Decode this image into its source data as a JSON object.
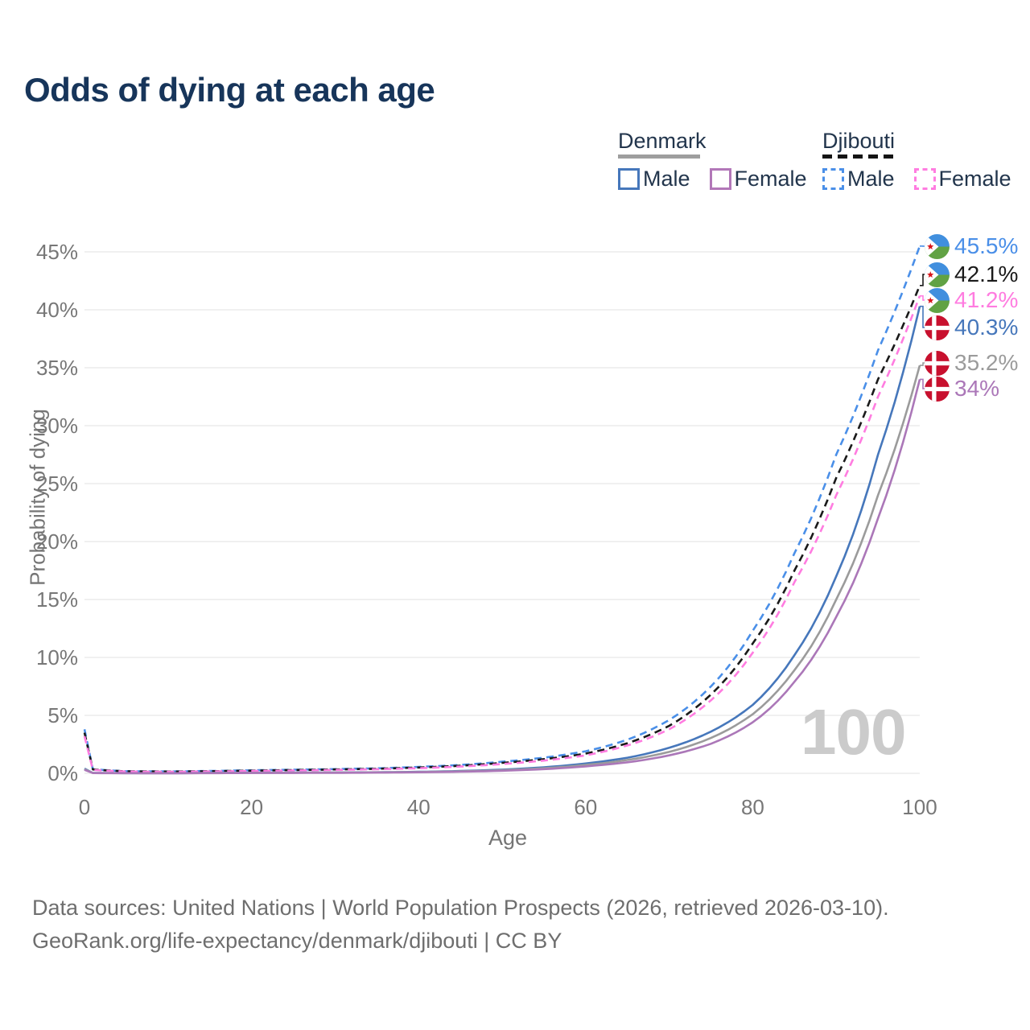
{
  "title": "Odds of dying at each age",
  "watermark": "100",
  "legend": {
    "groups": [
      {
        "name": "Denmark",
        "style": "solid",
        "underline_color": "#9e9e9e",
        "items": [
          {
            "label": "Male",
            "color": "#4677bb"
          },
          {
            "label": "Female",
            "color": "#b277b8"
          }
        ]
      },
      {
        "name": "Djibouti",
        "style": "dashed",
        "underline_color": "#141414",
        "items": [
          {
            "label": "Male",
            "color": "#4a8fe8"
          },
          {
            "label": "Female",
            "color": "#ff7ce0"
          }
        ]
      }
    ]
  },
  "chart_data": {
    "type": "line",
    "title": "Odds of dying at each age",
    "xlabel": "Age",
    "ylabel": "Probability of dying",
    "xlim": [
      0,
      100
    ],
    "ylim": [
      0,
      47
    ],
    "xticks": [
      0,
      20,
      40,
      60,
      80,
      100
    ],
    "yticks": [
      0,
      5,
      10,
      15,
      20,
      25,
      30,
      35,
      40,
      45
    ],
    "grid": true,
    "legend_position": "top-right",
    "x": [
      0,
      1,
      5,
      10,
      15,
      20,
      25,
      30,
      35,
      40,
      45,
      50,
      55,
      60,
      65,
      70,
      75,
      80,
      85,
      90,
      95,
      100
    ],
    "series": [
      {
        "name": "Djibouti Male",
        "country": "Djibouti",
        "sex": "male",
        "color": "#4a8fe8",
        "dash": "dashed",
        "end_label": "45.5%",
        "values": [
          3.8,
          0.35,
          0.18,
          0.16,
          0.2,
          0.26,
          0.31,
          0.36,
          0.43,
          0.55,
          0.72,
          1.0,
          1.35,
          1.9,
          2.9,
          4.6,
          7.5,
          12.3,
          19.0,
          27.5,
          36.5,
          45.5
        ]
      },
      {
        "name": "Djibouti Both sexes",
        "country": "Djibouti",
        "sex": "both",
        "color": "#1a1a1a",
        "dash": "dashed",
        "end_label": "42.1%",
        "values": [
          3.5,
          0.33,
          0.17,
          0.15,
          0.18,
          0.23,
          0.28,
          0.33,
          0.39,
          0.5,
          0.65,
          0.9,
          1.22,
          1.7,
          2.6,
          4.1,
          6.8,
          11.2,
          17.5,
          25.5,
          34.0,
          42.1
        ]
      },
      {
        "name": "Djibouti Female",
        "country": "Djibouti",
        "sex": "female",
        "color": "#ff7ce0",
        "dash": "dashed",
        "end_label": "41.2%",
        "values": [
          3.2,
          0.3,
          0.15,
          0.13,
          0.16,
          0.2,
          0.24,
          0.29,
          0.35,
          0.44,
          0.58,
          0.8,
          1.1,
          1.55,
          2.4,
          3.8,
          6.3,
          10.4,
          16.5,
          24.0,
          32.5,
          41.2
        ]
      },
      {
        "name": "Denmark Male",
        "country": "Denmark",
        "sex": "male",
        "color": "#4677bb",
        "dash": "solid",
        "end_label": "40.3%",
        "values": [
          0.4,
          0.03,
          0.015,
          0.012,
          0.025,
          0.05,
          0.06,
          0.07,
          0.09,
          0.13,
          0.2,
          0.32,
          0.52,
          0.85,
          1.35,
          2.2,
          3.6,
          5.9,
          10.2,
          17.0,
          27.5,
          40.3
        ]
      },
      {
        "name": "Denmark Both sexes",
        "country": "Denmark",
        "sex": "both",
        "color": "#9b9b9b",
        "dash": "solid",
        "end_label": "35.2%",
        "values": [
          0.35,
          0.025,
          0.013,
          0.011,
          0.02,
          0.04,
          0.05,
          0.06,
          0.08,
          0.11,
          0.17,
          0.27,
          0.44,
          0.72,
          1.15,
          1.85,
          3.05,
          5.1,
          8.9,
          15.0,
          24.0,
          35.2
        ]
      },
      {
        "name": "Denmark Female",
        "country": "Denmark",
        "sex": "female",
        "color": "#ab77b8",
        "dash": "solid",
        "end_label": "34%",
        "values": [
          0.3,
          0.02,
          0.011,
          0.009,
          0.015,
          0.025,
          0.03,
          0.04,
          0.06,
          0.09,
          0.14,
          0.22,
          0.36,
          0.6,
          0.95,
          1.55,
          2.55,
          4.4,
          7.9,
          13.5,
          22.0,
          34.0
        ]
      }
    ]
  },
  "end_labels": [
    {
      "value": "45.5%",
      "color": "#4a8fe8",
      "flag": "djibouti"
    },
    {
      "value": "42.1%",
      "color": "#1a1a1a",
      "flag": "djibouti"
    },
    {
      "value": "41.2%",
      "color": "#ff7ce0",
      "flag": "djibouti"
    },
    {
      "value": "40.3%",
      "color": "#4677bb",
      "flag": "denmark"
    },
    {
      "value": "35.2%",
      "color": "#9b9b9b",
      "flag": "denmark"
    },
    {
      "value": "34%",
      "color": "#ab77b8",
      "flag": "denmark"
    }
  ],
  "footer": {
    "line1": "Data sources: United Nations | World Population Prospects (2026, retrieved 2026-03-10).",
    "line2": "GeoRank.org/life-expectancy/denmark/djibouti | CC BY"
  }
}
